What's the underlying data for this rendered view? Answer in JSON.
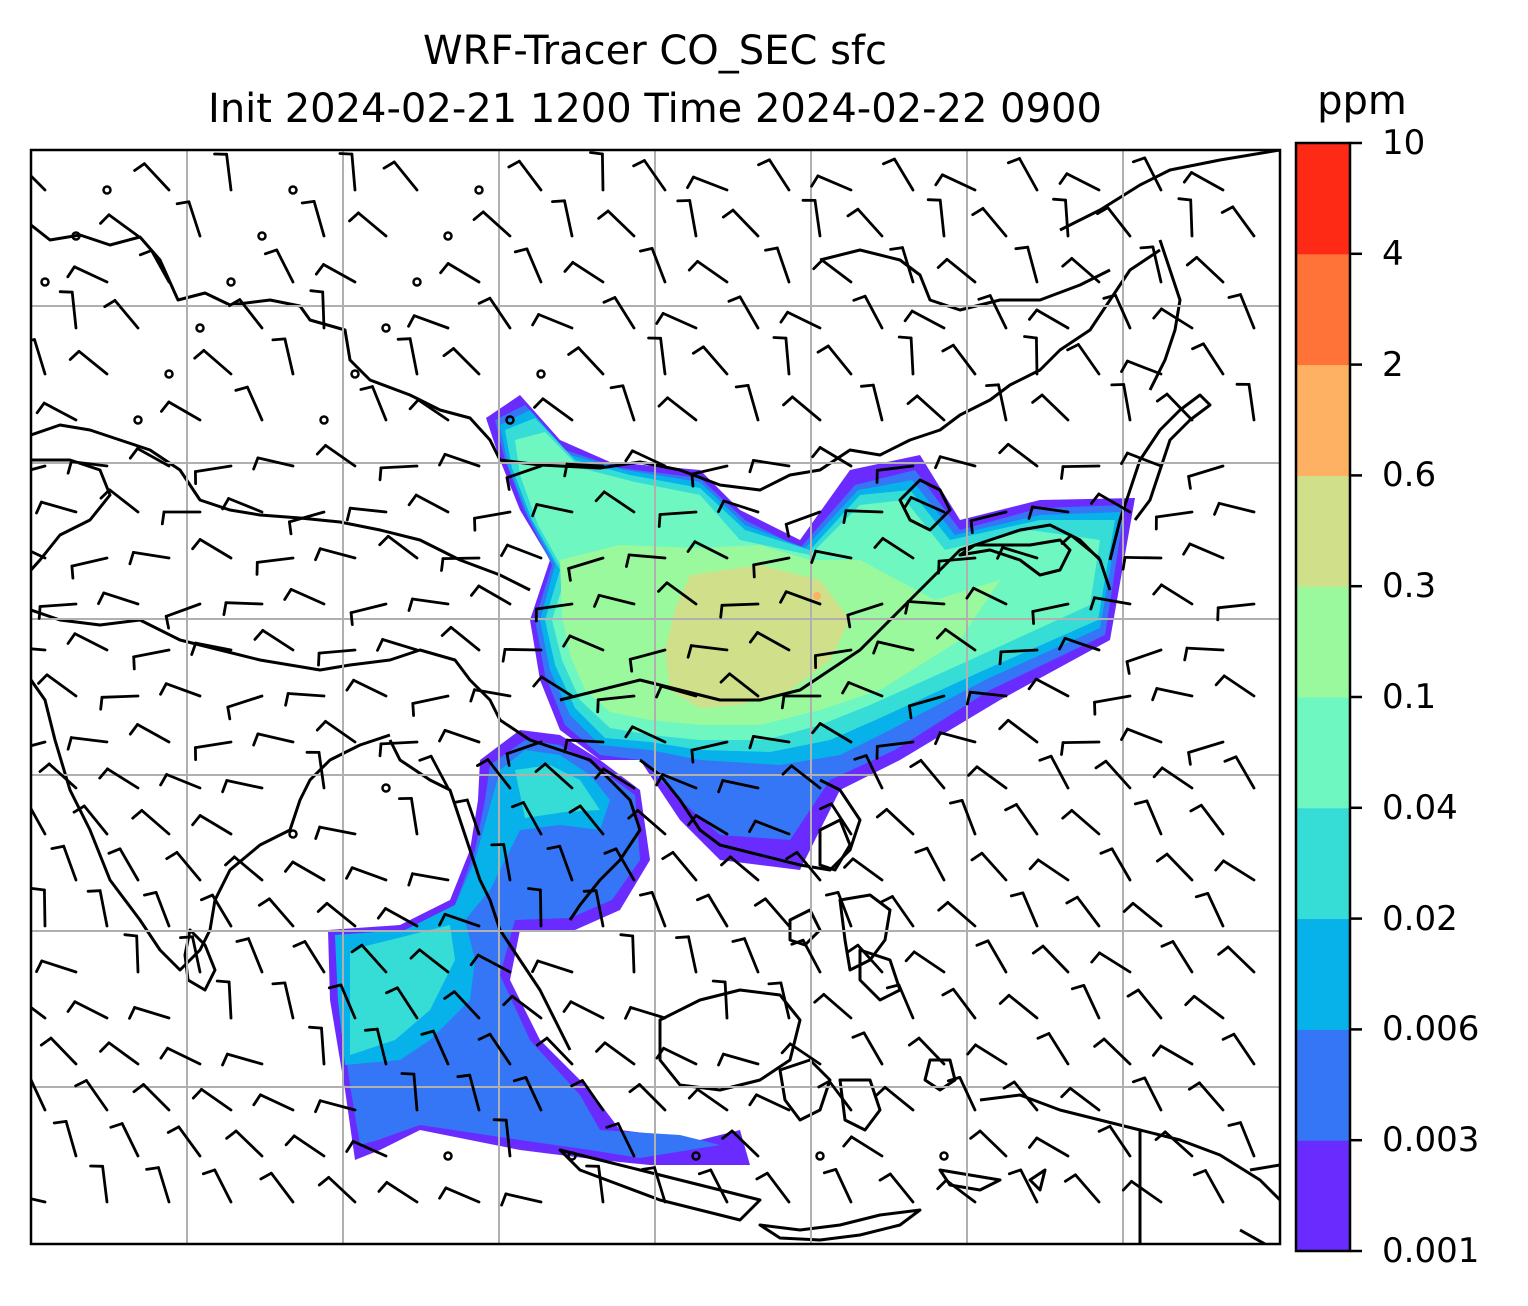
{
  "title": {
    "line1": "WRF-Tracer CO_SEC sfc",
    "line2": "Init 2024-02-21 1200 Time 2024-02-22 0900"
  },
  "colorbar": {
    "unit": "ppm",
    "levels": [
      "0.001",
      "0.003",
      "0.006",
      "0.02",
      "0.04",
      "0.1",
      "0.3",
      "0.6",
      "2",
      "4",
      "10"
    ],
    "colors": [
      "#6a2bff",
      "#3476f5",
      "#06b2e9",
      "#36ddd6",
      "#6ff7c1",
      "#9bf99d",
      "#d0e08a",
      "#ffb163",
      "#ff7339",
      "#ff2a16"
    ]
  },
  "map": {
    "region": "East / Southeast Asia",
    "gridlines": true,
    "overlay": "wind barbs (calm circles)"
  }
}
